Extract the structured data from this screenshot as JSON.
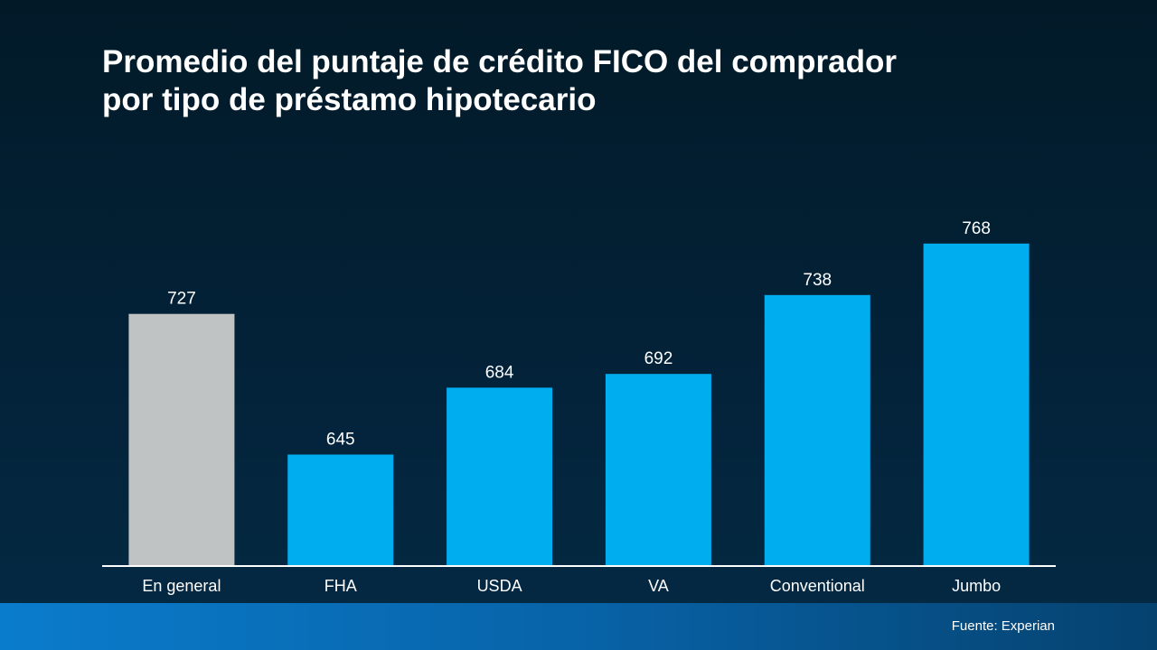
{
  "title_line1": "Promedio del puntaje de crédito FICO del comprador",
  "title_line2": "por tipo de préstamo hipotecario",
  "source": "Fuente: Experian",
  "colors": {
    "highlight_bar": "#c0c3c4",
    "bar": "#00adef",
    "axis": "#ffffff",
    "text": "#ffffff"
  },
  "chart_data": {
    "type": "bar",
    "title": "Promedio del puntaje de crédito FICO del comprador por tipo de préstamo hipotecario",
    "categories": [
      "En general",
      "FHA",
      "USDA",
      "VA",
      "Conventional",
      "Jumbo"
    ],
    "values": [
      727,
      645,
      684,
      692,
      738,
      768
    ],
    "highlight_index": 0,
    "data_labels": true,
    "grid": false,
    "ylim": [
      580,
      780
    ]
  }
}
